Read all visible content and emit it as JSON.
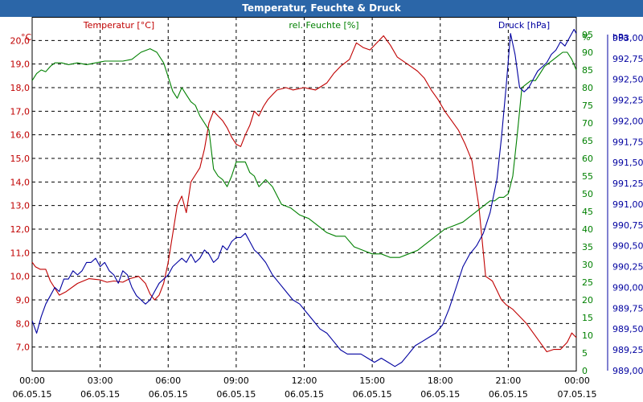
{
  "window": {
    "title": "Temperatur, Feuchte & Druck"
  },
  "chart_data": {
    "type": "line",
    "title": "Temperatur, Feuchte & Druck",
    "colors": {
      "temperature": "#c00000",
      "humidity": "#008000",
      "pressure": "#0000a0",
      "grid": "#000000",
      "frame": "#000000"
    },
    "legend": [
      {
        "name": "Temperatur [°C]",
        "color": "#c00000",
        "position": "top-left"
      },
      {
        "name": "rel. Feuchte [%]",
        "color": "#008000",
        "position": "top-center"
      },
      {
        "name": "Druck [hPa]",
        "color": "#0000a0",
        "position": "top-right"
      }
    ],
    "axes": {
      "temperature": {
        "unit": "°C",
        "min": 6.0,
        "max": 21.0,
        "ticks": [
          7.0,
          8.0,
          9.0,
          10.0,
          11.0,
          12.0,
          13.0,
          14.0,
          15.0,
          16.0,
          17.0,
          18.0,
          19.0,
          20.0
        ],
        "tick_labels": [
          "7,0",
          "8,0",
          "9,0",
          "10,0",
          "11,0",
          "12,0",
          "13,0",
          "14,0",
          "15,0",
          "16,0",
          "17,0",
          "18,0",
          "19,0",
          "20,0"
        ]
      },
      "humidity": {
        "unit": "%",
        "min": 0,
        "max": 100,
        "ticks": [
          0,
          5,
          10,
          15,
          20,
          25,
          30,
          35,
          40,
          45,
          50,
          55,
          60,
          65,
          70,
          75,
          80,
          85,
          90,
          95
        ],
        "tick_labels": [
          "0",
          "5",
          "10",
          "15",
          "20",
          "25",
          "30",
          "35",
          "40",
          "45",
          "50",
          "55",
          "60",
          "65",
          "70",
          "75",
          "80",
          "85",
          "90",
          "95"
        ]
      },
      "pressure": {
        "unit": "hPa",
        "min": 989.0,
        "max": 993.25,
        "ticks": [
          989.0,
          989.25,
          989.5,
          989.75,
          990.0,
          990.25,
          990.5,
          990.75,
          991.0,
          991.25,
          991.5,
          991.75,
          992.0,
          992.25,
          992.5,
          992.75,
          993.0
        ],
        "tick_labels": [
          "989,00",
          "989,25",
          "989,50",
          "989,75",
          "990,00",
          "990,25",
          "990,50",
          "990,75",
          "991,00",
          "991,25",
          "991,50",
          "991,75",
          "992,00",
          "992,25",
          "992,50",
          "992,75",
          "993,00"
        ]
      },
      "x": {
        "min": 0,
        "max": 24,
        "ticks": [
          0,
          3,
          6,
          9,
          12,
          15,
          18,
          21,
          24
        ],
        "time_labels": [
          "00:00",
          "03:00",
          "06:00",
          "09:00",
          "12:00",
          "15:00",
          "18:00",
          "21:00",
          "00:00"
        ],
        "date_labels": [
          "06.05.15",
          "06.05.15",
          "06.05.15",
          "06.05.15",
          "06.05.15",
          "06.05.15",
          "06.05.15",
          "06.05.15",
          "07.05.15"
        ]
      }
    },
    "grid": true,
    "series": [
      {
        "name": "Temperatur",
        "axis": "temperature",
        "color": "#c00000",
        "x": [
          0,
          0.15,
          0.35,
          0.6,
          0.8,
          1.0,
          1.2,
          1.5,
          2.0,
          2.5,
          3.0,
          3.3,
          3.6,
          4.0,
          4.3,
          4.7,
          5.0,
          5.2,
          5.4,
          5.6,
          5.8,
          6.0,
          6.2,
          6.4,
          6.6,
          6.8,
          7.0,
          7.2,
          7.4,
          7.6,
          7.8,
          8.0,
          8.2,
          8.4,
          8.6,
          8.8,
          9.0,
          9.2,
          9.4,
          9.6,
          9.8,
          10.0,
          10.2,
          10.4,
          10.6,
          10.8,
          11.0,
          11.2,
          11.5,
          12.0,
          12.5,
          13.0,
          13.3,
          13.6,
          14.0,
          14.3,
          14.6,
          14.9,
          15.2,
          15.5,
          15.8,
          16.1,
          16.4,
          16.7,
          17.0,
          17.3,
          17.6,
          17.9,
          18.2,
          18.5,
          18.8,
          19.1,
          19.4,
          19.7,
          20.0,
          20.3,
          20.5,
          20.7,
          20.9,
          21.2,
          21.5,
          21.8,
          22.1,
          22.4,
          22.7,
          23.0,
          23.3,
          23.6,
          23.8,
          24.0
        ],
        "values": [
          10.6,
          10.4,
          10.3,
          10.3,
          9.8,
          9.5,
          9.2,
          9.35,
          9.7,
          9.9,
          9.85,
          9.75,
          9.8,
          9.75,
          9.9,
          10.0,
          9.7,
          9.25,
          9.0,
          9.2,
          9.7,
          10.6,
          11.8,
          13.0,
          13.4,
          12.7,
          14.0,
          14.3,
          14.6,
          15.4,
          16.5,
          17.0,
          16.8,
          16.6,
          16.3,
          15.9,
          15.6,
          15.5,
          16.0,
          16.4,
          17.0,
          16.8,
          17.2,
          17.5,
          17.7,
          17.9,
          17.95,
          18.0,
          17.9,
          18.0,
          17.9,
          18.2,
          18.6,
          18.9,
          19.2,
          19.9,
          19.7,
          19.6,
          19.9,
          20.2,
          19.8,
          19.3,
          19.1,
          18.9,
          18.7,
          18.4,
          17.9,
          17.5,
          17.0,
          16.6,
          16.2,
          15.6,
          14.9,
          13.0,
          10.0,
          9.8,
          9.4,
          9.0,
          8.8,
          8.6,
          8.3,
          8.0,
          7.6,
          7.2,
          6.8,
          6.9,
          6.9,
          7.2,
          7.6,
          7.4
        ]
      },
      {
        "name": "rel. Feuchte",
        "axis": "humidity",
        "color": "#008000",
        "x": [
          0,
          0.2,
          0.4,
          0.6,
          0.8,
          1.0,
          1.3,
          1.6,
          2.0,
          2.4,
          2.8,
          3.2,
          3.6,
          4.0,
          4.4,
          4.8,
          5.2,
          5.5,
          5.8,
          6.0,
          6.2,
          6.4,
          6.6,
          6.8,
          7.0,
          7.2,
          7.4,
          7.6,
          7.8,
          8.0,
          8.2,
          8.4,
          8.6,
          8.8,
          9.0,
          9.2,
          9.4,
          9.6,
          9.8,
          10.0,
          10.3,
          10.6,
          11.0,
          11.4,
          11.8,
          12.2,
          12.6,
          13.0,
          13.4,
          13.8,
          14.2,
          14.6,
          15.0,
          15.4,
          15.8,
          16.2,
          16.6,
          17.0,
          17.4,
          17.8,
          18.2,
          18.6,
          19.0,
          19.4,
          19.8,
          20.2,
          20.4,
          20.6,
          20.8,
          21.0,
          21.2,
          21.4,
          21.6,
          21.8,
          22.0,
          22.2,
          22.4,
          22.6,
          22.8,
          23.0,
          23.2,
          23.4,
          23.6,
          23.8,
          24.0
        ],
        "values": [
          82,
          84,
          85,
          84.5,
          86,
          87,
          87,
          86.5,
          87,
          86.5,
          87,
          87.5,
          87.5,
          87.5,
          88,
          90,
          91,
          90,
          87,
          83,
          79,
          77,
          80,
          78,
          76,
          75,
          72,
          70,
          68,
          57,
          55,
          54,
          52,
          55,
          59,
          59,
          59,
          56,
          55,
          52,
          54,
          52,
          47,
          46,
          44,
          43,
          41,
          39,
          38,
          38,
          35,
          34,
          33,
          33,
          32,
          32,
          33,
          34,
          36,
          38,
          40,
          41,
          42,
          44,
          46,
          48,
          48,
          49,
          49,
          50,
          55,
          67,
          80,
          81,
          82,
          82,
          84,
          86,
          87,
          88,
          89,
          90,
          90,
          88,
          85
        ]
      },
      {
        "name": "Druck",
        "axis": "pressure",
        "color": "#0000a0",
        "x": [
          0,
          0.2,
          0.4,
          0.6,
          0.8,
          1.0,
          1.2,
          1.4,
          1.6,
          1.8,
          2.0,
          2.2,
          2.4,
          2.6,
          2.8,
          3.0,
          3.2,
          3.4,
          3.6,
          3.8,
          4.0,
          4.2,
          4.4,
          4.6,
          4.8,
          5.0,
          5.2,
          5.4,
          5.6,
          5.8,
          6.0,
          6.2,
          6.4,
          6.6,
          6.8,
          7.0,
          7.2,
          7.4,
          7.6,
          7.8,
          8.0,
          8.2,
          8.4,
          8.6,
          8.8,
          9.0,
          9.2,
          9.4,
          9.6,
          9.8,
          10.0,
          10.3,
          10.6,
          10.9,
          11.2,
          11.5,
          11.8,
          12.1,
          12.4,
          12.7,
          13.0,
          13.3,
          13.6,
          13.9,
          14.2,
          14.5,
          14.8,
          15.1,
          15.4,
          15.7,
          16.0,
          16.3,
          16.6,
          16.9,
          17.2,
          17.5,
          17.8,
          18.1,
          18.4,
          18.7,
          19.0,
          19.3,
          19.6,
          19.9,
          20.2,
          20.5,
          20.7,
          20.9,
          21.1,
          21.3,
          21.5,
          21.7,
          21.9,
          22.1,
          22.3,
          22.5,
          22.7,
          22.9,
          23.1,
          23.3,
          23.5,
          23.7,
          23.9,
          24.0
        ],
        "values": [
          989.6,
          989.45,
          989.65,
          989.8,
          989.9,
          990.0,
          989.95,
          990.1,
          990.1,
          990.2,
          990.15,
          990.2,
          990.3,
          990.3,
          990.35,
          990.25,
          990.3,
          990.2,
          990.15,
          990.05,
          990.2,
          990.15,
          990.0,
          989.9,
          989.85,
          989.8,
          989.85,
          989.95,
          990.05,
          990.1,
          990.15,
          990.25,
          990.3,
          990.35,
          990.3,
          990.4,
          990.3,
          990.35,
          990.45,
          990.4,
          990.3,
          990.35,
          990.5,
          990.45,
          990.55,
          990.6,
          990.6,
          990.65,
          990.55,
          990.45,
          990.4,
          990.3,
          990.15,
          990.05,
          989.95,
          989.85,
          989.8,
          989.7,
          989.6,
          989.5,
          989.45,
          989.35,
          989.25,
          989.2,
          989.2,
          989.2,
          989.15,
          989.1,
          989.15,
          989.1,
          989.05,
          989.1,
          989.2,
          989.3,
          989.35,
          989.4,
          989.45,
          989.55,
          989.75,
          990.0,
          990.25,
          990.4,
          990.5,
          990.65,
          990.9,
          991.3,
          991.8,
          992.4,
          993.05,
          992.8,
          992.4,
          992.35,
          992.4,
          992.5,
          992.6,
          992.65,
          992.7,
          992.8,
          992.85,
          992.95,
          992.9,
          993.0,
          993.1,
          993.05
        ]
      }
    ]
  }
}
